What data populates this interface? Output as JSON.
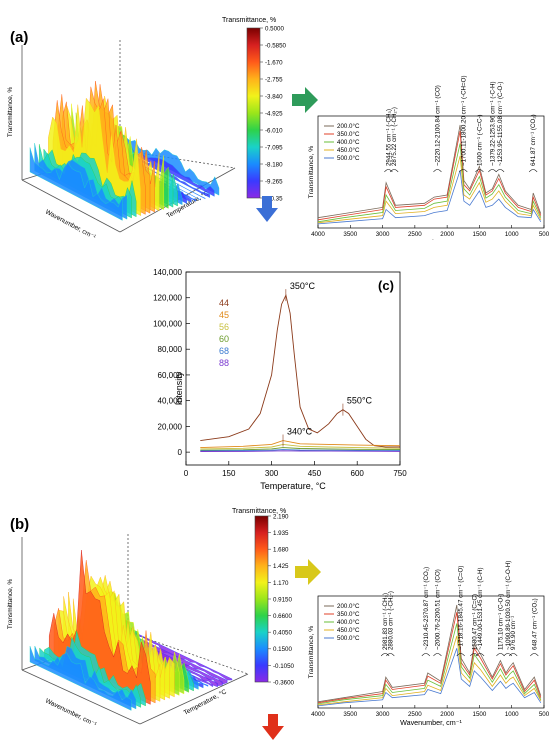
{
  "panel_a": {
    "label": "(a)",
    "surface_axes": {
      "z": "Transmittance, %",
      "x": "Wavenumber, cm⁻¹",
      "y": "Temperature, °C"
    },
    "colorbar": {
      "title": "Transmittance, %",
      "ticks": [
        "0.5000",
        "-0.5850",
        "-1.670",
        "-2.755",
        "-3.840",
        "-4.925",
        "-6.010",
        "-7.095",
        "-8.180",
        "-9.265",
        "-10.35"
      ],
      "colors": [
        "#7a0000",
        "#d62020",
        "#ff5a1a",
        "#ffb21a",
        "#f2f21a",
        "#9be61a",
        "#2ed24a",
        "#1ad2c8",
        "#1a8cff",
        "#3a3aff",
        "#8a2ae6"
      ]
    },
    "arrow_right_color": "#2e9b5a",
    "arrow_down_color": "#3b6fd6"
  },
  "panel_b": {
    "label": "(b)",
    "surface_axes": {
      "z": "Transmittance, %",
      "x": "Wavenumber, cm⁻¹",
      "y": "Temperature, °C"
    },
    "colorbar": {
      "title": "Transmittance, %",
      "ticks": [
        "2.190",
        "1.935",
        "1.680",
        "1.425",
        "1.170",
        "0.9150",
        "0.6600",
        "0.4050",
        "0.1500",
        "-0.1050",
        "-0.3600"
      ],
      "colors": [
        "#7a0000",
        "#d62020",
        "#ff5a1a",
        "#ffb21a",
        "#f2f21a",
        "#9be61a",
        "#2ed24a",
        "#1ad2c8",
        "#1a8cff",
        "#3a3aff",
        "#8a2ae6"
      ]
    },
    "arrow_right_color": "#d8c81a",
    "arrow_down_color": "#e0301a"
  },
  "chart_data": [
    {
      "type": "line",
      "id": "ftir-a",
      "title": "",
      "xlabel": "Wavenumber, cm⁻¹",
      "ylabel": "Transmittance, %",
      "xlim": [
        4000,
        500
      ],
      "x_ticks": [
        4000,
        3500,
        3000,
        2500,
        2000,
        1500,
        1000,
        500
      ],
      "legend": {
        "placement": "top-left",
        "entries": [
          "200.0°C",
          "350.0°C",
          "400.0°C",
          "450.0°C",
          "500.0°C"
        ]
      },
      "series_colors": [
        "#7a6a5a",
        "#e0402a",
        "#6abf3a",
        "#e0b020",
        "#4a7ad0"
      ],
      "series": [
        {
          "name": "200.0°C",
          "x": [
            4000,
            3600,
            3000,
            2945,
            2800,
            2350,
            2200,
            2000,
            1800,
            1740,
            1650,
            1500,
            1400,
            1300,
            1200,
            1100,
            900,
            700,
            668,
            550
          ],
          "y": [
            0.1,
            0.14,
            0.2,
            0.44,
            0.22,
            0.24,
            0.3,
            0.32,
            1.0,
            0.46,
            0.38,
            0.6,
            0.34,
            0.38,
            0.52,
            0.36,
            0.22,
            0.18,
            0.34,
            0.14
          ]
        },
        {
          "name": "350.0°C",
          "x": [
            4000,
            3600,
            3000,
            2945,
            2800,
            2350,
            2200,
            2000,
            1800,
            1740,
            1650,
            1500,
            1400,
            1300,
            1200,
            1100,
            900,
            700,
            668,
            550
          ],
          "y": [
            0.08,
            0.12,
            0.18,
            0.4,
            0.2,
            0.22,
            0.28,
            0.3,
            0.94,
            0.42,
            0.36,
            0.56,
            0.32,
            0.36,
            0.48,
            0.34,
            0.2,
            0.16,
            0.3,
            0.12
          ]
        },
        {
          "name": "400.0°C",
          "x": [
            4000,
            3600,
            3000,
            2945,
            2800,
            2350,
            2200,
            2000,
            1800,
            1740,
            1650,
            1500,
            1400,
            1300,
            1200,
            1100,
            900,
            700,
            668,
            550
          ],
          "y": [
            0.06,
            0.1,
            0.15,
            0.32,
            0.17,
            0.19,
            0.24,
            0.26,
            0.82,
            0.38,
            0.32,
            0.5,
            0.29,
            0.33,
            0.42,
            0.3,
            0.17,
            0.14,
            0.26,
            0.1
          ]
        },
        {
          "name": "450.0°C",
          "x": [
            4000,
            3600,
            3000,
            2945,
            2800,
            2350,
            2200,
            2000,
            1800,
            1740,
            1650,
            1500,
            1400,
            1300,
            1200,
            1100,
            900,
            700,
            668,
            550
          ],
          "y": [
            0.05,
            0.08,
            0.12,
            0.26,
            0.14,
            0.16,
            0.2,
            0.22,
            0.7,
            0.32,
            0.28,
            0.44,
            0.25,
            0.28,
            0.36,
            0.26,
            0.14,
            0.12,
            0.22,
            0.08
          ]
        },
        {
          "name": "500.0°C",
          "x": [
            4000,
            3600,
            3000,
            2945,
            2800,
            2350,
            2200,
            2000,
            1800,
            1740,
            1650,
            1500,
            1400,
            1300,
            1200,
            1100,
            900,
            700,
            668,
            550
          ],
          "y": [
            0.04,
            0.06,
            0.09,
            0.18,
            0.1,
            0.12,
            0.15,
            0.17,
            0.56,
            0.26,
            0.22,
            0.36,
            0.2,
            0.22,
            0.28,
            0.2,
            0.11,
            0.1,
            0.18,
            0.06
          ]
        }
      ],
      "annotations": [
        {
          "x": 2910,
          "text": "2944.55 cm⁻¹ (-CH₃)"
        },
        {
          "x": 2820,
          "text": "2875.22 cm⁻¹ (-CH₂-)"
        },
        {
          "x": 2150,
          "text": "~2220.12-2100.84 cm⁻¹ (CO)"
        },
        {
          "x": 1750,
          "text": "~1700.11-1800.20 cm⁻¹ (-CH=O)"
        },
        {
          "x": 1500,
          "text": "1500 cm⁻¹ (-C=C-)"
        },
        {
          "x": 1300,
          "text": "~1379.22-1253.96 cm⁻¹ (-C-H)"
        },
        {
          "x": 1180,
          "text": "~1253.95-1155.08 cm⁻¹ (C-O-)"
        },
        {
          "x": 668,
          "text": "641.87 cm⁻¹ (CO₂)"
        }
      ]
    },
    {
      "type": "line",
      "id": "ms-c",
      "title": "",
      "label": "(c)",
      "xlabel": "Temperature, °C",
      "ylabel": "Intensity",
      "xlim": [
        0,
        750
      ],
      "ylim": [
        -10000,
        140000
      ],
      "x_ticks": [
        0,
        150,
        300,
        450,
        600,
        750
      ],
      "y_ticks": [
        0,
        20000,
        40000,
        60000,
        80000,
        100000,
        120000,
        140000
      ],
      "y_tick_labels": [
        "0",
        "20,000",
        "40,000",
        "60,000",
        "80,000",
        "100,000",
        "120,000",
        "140,000"
      ],
      "legend": {
        "placement": "top-left"
      },
      "series": [
        {
          "name": "44",
          "color": "#8b3a1a",
          "x": [
            50,
            150,
            220,
            260,
            300,
            320,
            335,
            350,
            365,
            380,
            400,
            430,
            460,
            500,
            530,
            550,
            570,
            600,
            630,
            660,
            700,
            750
          ],
          "y": [
            9000,
            12000,
            18000,
            30000,
            60000,
            95000,
            115000,
            122000,
            108000,
            75000,
            35000,
            18000,
            15000,
            22000,
            30000,
            33000,
            30000,
            20000,
            10000,
            5000,
            4000,
            4000
          ]
        },
        {
          "name": "45",
          "color": "#e08a1a",
          "x": [
            50,
            200,
            300,
            340,
            400,
            500,
            600,
            750
          ],
          "y": [
            3500,
            4500,
            6000,
            9000,
            6500,
            6000,
            5500,
            5000
          ]
        },
        {
          "name": "56",
          "color": "#c8c040",
          "x": [
            50,
            200,
            300,
            340,
            400,
            500,
            600,
            750
          ],
          "y": [
            2500,
            3000,
            4000,
            6000,
            4500,
            4000,
            3500,
            3000
          ]
        },
        {
          "name": "60",
          "color": "#6a9a2a",
          "x": [
            50,
            200,
            300,
            340,
            400,
            500,
            600,
            750
          ],
          "y": [
            1500,
            1800,
            2500,
            3500,
            2800,
            2500,
            2200,
            2000
          ]
        },
        {
          "name": "68",
          "color": "#3a7ad0",
          "x": [
            50,
            200,
            300,
            340,
            400,
            500,
            600,
            750
          ],
          "y": [
            1000,
            1200,
            1500,
            2000,
            1600,
            1500,
            1300,
            1200
          ]
        },
        {
          "name": "88",
          "color": "#7a3ad0",
          "x": [
            50,
            200,
            300,
            340,
            400,
            500,
            600,
            750
          ],
          "y": [
            500,
            600,
            800,
            1000,
            900,
            800,
            700,
            600
          ]
        }
      ],
      "annotations": [
        {
          "x": 350,
          "y": 122000,
          "text": "350°C"
        },
        {
          "x": 550,
          "y": 33000,
          "text": "550°C"
        },
        {
          "x": 340,
          "y": 9000,
          "text": "340°C"
        }
      ]
    },
    {
      "type": "line",
      "id": "ftir-b",
      "title": "",
      "xlabel": "Wavenumber, cm⁻¹",
      "ylabel": "Transmittance, %",
      "xlim": [
        4000,
        500
      ],
      "x_ticks": [
        4000,
        3500,
        3000,
        2500,
        2000,
        1500,
        1000,
        500
      ],
      "legend": {
        "placement": "top-left",
        "entries": [
          "200.0°C",
          "350.0°C",
          "400.0°C",
          "450.0°C",
          "500.0°C"
        ]
      },
      "series_colors": [
        "#7a6a5a",
        "#e0402a",
        "#6abf3a",
        "#e0b020",
        "#4a7ad0"
      ],
      "series": [
        {
          "name": "200.0°C",
          "x": [
            4000,
            3600,
            3000,
            2950,
            2850,
            2350,
            2300,
            2100,
            1850,
            1780,
            1650,
            1580,
            1480,
            1300,
            1175,
            1090,
            1030,
            977,
            800,
            650,
            550
          ],
          "y": [
            0.06,
            0.1,
            0.16,
            0.3,
            0.2,
            0.24,
            0.34,
            0.26,
            1.0,
            0.48,
            0.34,
            0.62,
            0.52,
            0.3,
            0.46,
            0.34,
            0.4,
            0.44,
            0.18,
            0.3,
            0.12
          ]
        },
        {
          "name": "350.0°C",
          "x": [
            4000,
            3600,
            3000,
            2950,
            2850,
            2350,
            2300,
            2100,
            1850,
            1780,
            1650,
            1580,
            1480,
            1300,
            1175,
            1090,
            1030,
            977,
            800,
            650,
            550
          ],
          "y": [
            0.05,
            0.09,
            0.14,
            0.27,
            0.18,
            0.22,
            0.31,
            0.24,
            0.93,
            0.44,
            0.32,
            0.58,
            0.48,
            0.28,
            0.43,
            0.32,
            0.37,
            0.41,
            0.16,
            0.27,
            0.1
          ]
        },
        {
          "name": "400.0°C",
          "x": [
            4000,
            3600,
            3000,
            2950,
            2850,
            2350,
            2300,
            2100,
            1850,
            1780,
            1650,
            1580,
            1480,
            1300,
            1175,
            1090,
            1030,
            977,
            800,
            650,
            550
          ],
          "y": [
            0.04,
            0.08,
            0.12,
            0.23,
            0.15,
            0.19,
            0.27,
            0.21,
            0.82,
            0.4,
            0.29,
            0.52,
            0.43,
            0.25,
            0.38,
            0.28,
            0.33,
            0.36,
            0.14,
            0.23,
            0.08
          ]
        },
        {
          "name": "450.0°C",
          "x": [
            4000,
            3600,
            3000,
            2950,
            2850,
            2350,
            2300,
            2100,
            1850,
            1780,
            1650,
            1580,
            1480,
            1300,
            1175,
            1090,
            1030,
            977,
            800,
            650,
            550
          ],
          "y": [
            0.03,
            0.06,
            0.1,
            0.19,
            0.12,
            0.16,
            0.22,
            0.17,
            0.7,
            0.34,
            0.25,
            0.44,
            0.37,
            0.21,
            0.32,
            0.24,
            0.28,
            0.3,
            0.12,
            0.19,
            0.07
          ]
        },
        {
          "name": "500.0°C",
          "x": [
            4000,
            3600,
            3000,
            2950,
            2850,
            2350,
            2300,
            2100,
            1850,
            1780,
            1650,
            1580,
            1480,
            1300,
            1175,
            1090,
            1030,
            977,
            800,
            650,
            550
          ],
          "y": [
            0.02,
            0.05,
            0.08,
            0.15,
            0.1,
            0.13,
            0.18,
            0.14,
            0.58,
            0.28,
            0.21,
            0.36,
            0.3,
            0.17,
            0.26,
            0.19,
            0.22,
            0.24,
            0.1,
            0.15,
            0.05
          ]
        }
      ],
      "annotations": [
        {
          "x": 2960,
          "text": "2981.83 cm⁻¹ (-CH₃)"
        },
        {
          "x": 2880,
          "text": "2880.03 cm⁻¹ (-CH₂-)"
        },
        {
          "x": 2330,
          "text": "~2310.45-2370.87 cm⁻¹ (CO₂)"
        },
        {
          "x": 2150,
          "text": "~2000.76-2200.51 cm⁻¹ (CO)"
        },
        {
          "x": 1790,
          "text": "~1718.16-1845.47 cm⁻¹ (C=O)"
        },
        {
          "x": 1580,
          "text": "1580.47 cm⁻¹ (C=C)"
        },
        {
          "x": 1490,
          "text": "~1449.00-1531.45 cm⁻¹ (C-H)"
        },
        {
          "x": 1175,
          "text": "1175.10 cm⁻¹ (C-O-)"
        },
        {
          "x": 1060,
          "text": "~1090.89-1030.50 cm⁻¹ (C-O-H)"
        },
        {
          "x": 977,
          "text": "976.90 cm⁻¹"
        },
        {
          "x": 650,
          "text": "648.47 cm⁻¹ (CO₂)"
        }
      ]
    }
  ]
}
